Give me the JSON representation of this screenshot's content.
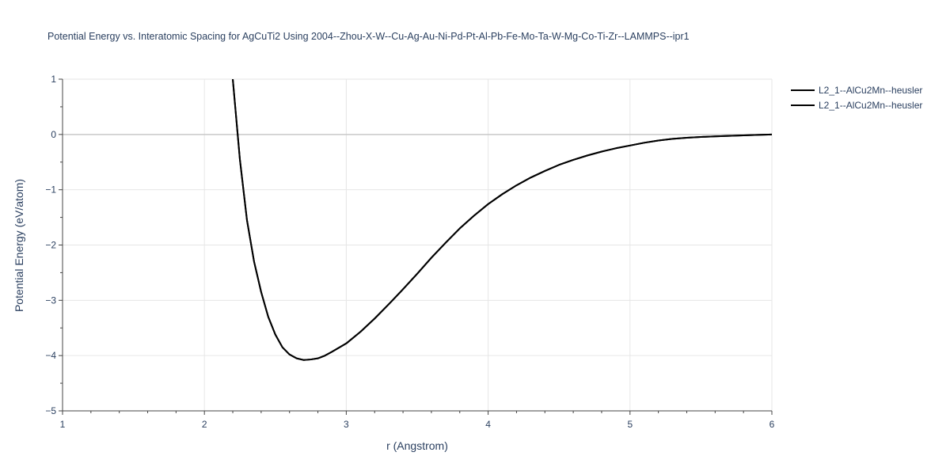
{
  "chart_data": {
    "type": "line",
    "title": "Potential Energy vs. Interatomic Spacing for AgCuTi2 Using 2004--Zhou-X-W--Cu-Ag-Au-Ni-Pd-Pt-Al-Pb-Fe-Mo-Ta-W-Mg-Co-Ti-Zr--LAMMPS--ipr1",
    "xlabel": "r (Angstrom)",
    "ylabel": "Potential Energy (eV/atom)",
    "xlim": [
      1,
      6
    ],
    "ylim": [
      -5,
      1
    ],
    "xticks": [
      1,
      2,
      3,
      4,
      5,
      6
    ],
    "yticks": [
      1,
      0,
      -1,
      -2,
      -3,
      -4,
      -5
    ],
    "grid": true,
    "legend_position": "top-right",
    "series": [
      {
        "name": "L2_1--AlCu2Mn--heusler",
        "color": "#000000",
        "x": [
          2.2,
          2.25,
          2.3,
          2.35,
          2.4,
          2.45,
          2.5,
          2.55,
          2.6,
          2.65,
          2.7,
          2.75,
          2.8,
          2.85,
          2.9,
          3.0,
          3.1,
          3.2,
          3.3,
          3.4,
          3.5,
          3.6,
          3.7,
          3.8,
          3.9,
          4.0,
          4.1,
          4.2,
          4.3,
          4.4,
          4.5,
          4.6,
          4.7,
          4.8,
          4.9,
          5.0,
          5.1,
          5.2,
          5.3,
          5.4,
          5.5,
          5.6,
          5.7,
          5.8,
          5.9,
          6.0
        ],
        "y": [
          1.0,
          -0.45,
          -1.55,
          -2.3,
          -2.85,
          -3.3,
          -3.62,
          -3.85,
          -3.98,
          -4.05,
          -4.08,
          -4.07,
          -4.05,
          -4.0,
          -3.93,
          -3.78,
          -3.57,
          -3.33,
          -3.07,
          -2.8,
          -2.52,
          -2.23,
          -1.96,
          -1.7,
          -1.47,
          -1.26,
          -1.08,
          -0.92,
          -0.78,
          -0.66,
          -0.55,
          -0.46,
          -0.38,
          -0.31,
          -0.25,
          -0.2,
          -0.15,
          -0.11,
          -0.08,
          -0.06,
          -0.045,
          -0.035,
          -0.025,
          -0.017,
          -0.008,
          0.0
        ]
      },
      {
        "name": "L2_1--AlCu2Mn--heusler",
        "color": "#000000",
        "x": [
          2.2,
          2.25,
          2.3,
          2.35,
          2.4,
          2.45,
          2.5,
          2.55,
          2.6,
          2.65,
          2.7,
          2.75,
          2.8,
          2.85,
          2.9,
          3.0,
          3.1,
          3.2,
          3.3,
          3.4,
          3.5,
          3.6,
          3.7,
          3.8,
          3.9,
          4.0,
          4.1,
          4.2,
          4.3,
          4.4,
          4.5,
          4.6,
          4.7,
          4.8,
          4.9,
          5.0,
          5.1,
          5.2,
          5.3,
          5.4,
          5.5,
          5.6,
          5.7,
          5.8,
          5.9,
          6.0
        ],
        "y": [
          1.0,
          -0.45,
          -1.55,
          -2.3,
          -2.85,
          -3.3,
          -3.62,
          -3.85,
          -3.98,
          -4.05,
          -4.08,
          -4.07,
          -4.05,
          -4.0,
          -3.93,
          -3.78,
          -3.57,
          -3.33,
          -3.07,
          -2.8,
          -2.52,
          -2.23,
          -1.96,
          -1.7,
          -1.47,
          -1.26,
          -1.08,
          -0.92,
          -0.78,
          -0.66,
          -0.55,
          -0.46,
          -0.38,
          -0.31,
          -0.25,
          -0.2,
          -0.15,
          -0.11,
          -0.08,
          -0.06,
          -0.045,
          -0.035,
          -0.025,
          -0.017,
          -0.008,
          0.0
        ]
      }
    ]
  }
}
